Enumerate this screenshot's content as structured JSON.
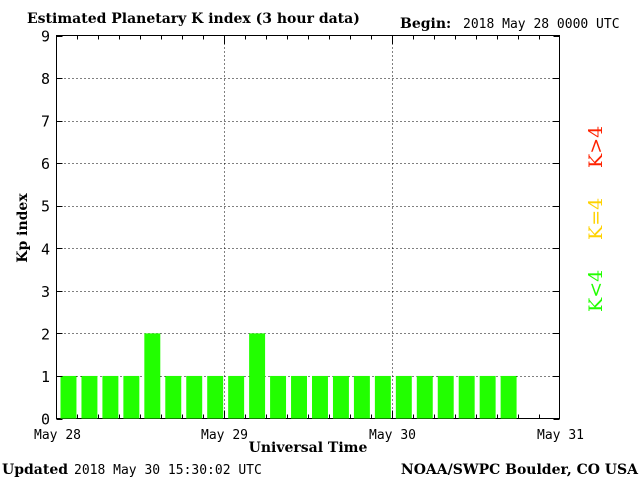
{
  "header": {
    "title": "Estimated Planetary K index (3 hour data)",
    "begin_label": "Begin:",
    "begin_value": "2018 May 28 0000 UTC"
  },
  "footer": {
    "updated_label": "Updated",
    "updated_value": "2018 May 30 15:30:02 UTC",
    "credit": "NOAA/SWPC Boulder, CO USA"
  },
  "legend": {
    "high": {
      "label": "K>4",
      "color": "#ff2200"
    },
    "mid": {
      "label": "K=4",
      "color": "#ffd200"
    },
    "low": {
      "label": "K<4",
      "color": "#22ff00"
    }
  },
  "chart_data": {
    "type": "bar",
    "title": "Estimated Planetary K index (3 hour data)",
    "xlabel": "Universal Time",
    "ylabel": "Kp index",
    "ylim": [
      0,
      9
    ],
    "yticks": [
      0,
      1,
      2,
      3,
      4,
      5,
      6,
      7,
      8,
      9
    ],
    "xtick_labels": [
      "May 28",
      "May 29",
      "May 30",
      "May 31"
    ],
    "grid": true,
    "bar_color": "#22ff00",
    "interval_hours": 3,
    "bins_per_day": 8,
    "days": 3,
    "values": [
      1,
      1,
      1,
      1,
      2,
      1,
      1,
      1,
      1,
      2,
      1,
      1,
      1,
      1,
      1,
      1,
      1,
      1,
      1,
      1,
      1,
      1
    ]
  }
}
